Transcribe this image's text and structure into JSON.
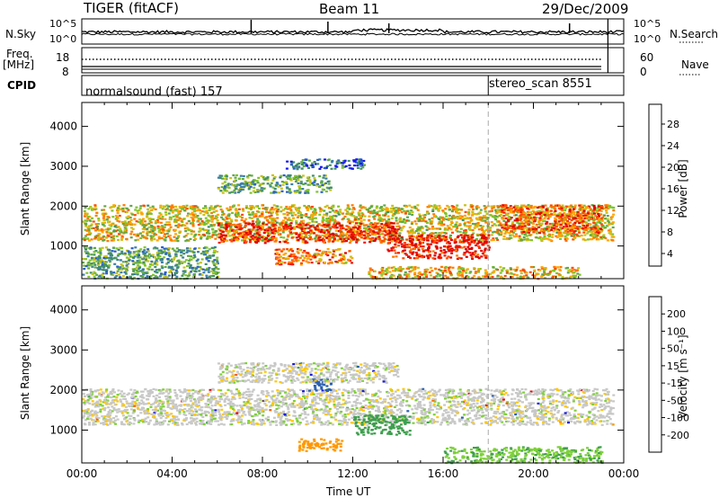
{
  "header": {
    "title": "TIGER (fitACF)",
    "beam": "Beam 11",
    "date": "29/Dec/2009"
  },
  "top_panels": {
    "nsky_label": "N.Sky",
    "nsearch_label": "N.Search",
    "noise_ticks_left": [
      "10^5",
      "10^0"
    ],
    "noise_ticks_right": [
      "10^5",
      "10^0"
    ],
    "freq_label": "Freq.",
    "freq_unit": "[MHz]",
    "freq_ticks": [
      "18",
      "8"
    ],
    "nave_label": "Nave",
    "nave_ticks": [
      "60",
      "0"
    ],
    "cpid_label": "CPID",
    "cpid_segments": [
      {
        "name": "normalsound (fast) 157",
        "start_hour": 0
      },
      {
        "name": "stereo_scan 8551",
        "start_hour": 18
      }
    ]
  },
  "chart_data": [
    {
      "type": "heatmap",
      "title": "",
      "xlabel": "",
      "ylabel": "Slant Range [km]",
      "x_range_hours": [
        0,
        24
      ],
      "ylim": [
        180,
        4600
      ],
      "y_ticks": [
        1000,
        2000,
        3000,
        4000
      ],
      "colorbar": {
        "label": "Power [dB]",
        "ticks": [
          "4",
          "8",
          "12",
          "16",
          "20",
          "24",
          "28"
        ],
        "colors": [
          "#1717f0",
          "#2a5fc8",
          "#3c7fa8",
          "#3f8f66",
          "#5fa845",
          "#7ec42a",
          "#c9c21a",
          "#ffa500",
          "#ff7a00",
          "#ff4a00",
          "#ee1a00",
          "#dd0000"
        ]
      },
      "regions": [
        {
          "h0": 0.0,
          "h1": 23.5,
          "r0": 1150,
          "r1": 2050,
          "level": 0.55
        },
        {
          "h0": 6.0,
          "h1": 14.0,
          "r0": 1100,
          "r1": 1600,
          "level": 0.85
        },
        {
          "h0": 13.5,
          "h1": 18.0,
          "r0": 700,
          "r1": 1300,
          "level": 0.92
        },
        {
          "h0": 8.5,
          "h1": 12.0,
          "r0": 550,
          "r1": 950,
          "level": 0.72
        },
        {
          "h0": 6.0,
          "h1": 11.0,
          "r0": 2350,
          "r1": 2800,
          "level": 0.35
        },
        {
          "h0": 18.5,
          "h1": 23.0,
          "r0": 1350,
          "r1": 2050,
          "level": 0.78
        },
        {
          "h0": 12.5,
          "h1": 22.0,
          "r0": 200,
          "r1": 500,
          "level": 0.6
        },
        {
          "h0": 0.0,
          "h1": 6.0,
          "r0": 200,
          "r1": 1000,
          "level": 0.35
        },
        {
          "h0": 9.0,
          "h1": 12.5,
          "r0": 2950,
          "r1": 3200,
          "level": 0.2
        }
      ]
    },
    {
      "type": "heatmap",
      "title": "",
      "xlabel": "Time UT",
      "ylabel": "Slant Range [km]",
      "x_range_hours": [
        0,
        24
      ],
      "x_ticks": [
        "00:00",
        "04:00",
        "08:00",
        "12:00",
        "16:00",
        "20:00",
        "00:00"
      ],
      "ylim": [
        180,
        4600
      ],
      "y_ticks": [
        1000,
        2000,
        3000,
        4000
      ],
      "colorbar": {
        "label": "Velocity [m s⁻¹]",
        "ticks": [
          "-200",
          "-100",
          "-50",
          "-15",
          "15",
          "50",
          "100",
          "200"
        ],
        "colors": [
          "#ee0000",
          "#ff5a00",
          "#ff9800",
          "#ffc800",
          "#c8c8c8",
          "#7ed03a",
          "#3f9f4f",
          "#2a5faf",
          "#1a1ad8"
        ]
      },
      "regions": [
        {
          "h0": 0.0,
          "h1": 23.5,
          "r0": 1150,
          "r1": 2050,
          "value": 0
        },
        {
          "h0": 12.0,
          "h1": 14.5,
          "r0": 900,
          "r1": 1400,
          "value": 70
        },
        {
          "h0": 9.5,
          "h1": 11.5,
          "r0": 500,
          "r1": 800,
          "value": -80
        },
        {
          "h0": 10.0,
          "h1": 11.0,
          "r0": 2000,
          "r1": 2300,
          "value": 180
        },
        {
          "h0": 16.0,
          "h1": 23.0,
          "r0": 200,
          "r1": 600,
          "value": 40
        },
        {
          "h0": 6.0,
          "h1": 14.0,
          "r0": 2200,
          "r1": 2700,
          "value": 0
        }
      ]
    }
  ]
}
